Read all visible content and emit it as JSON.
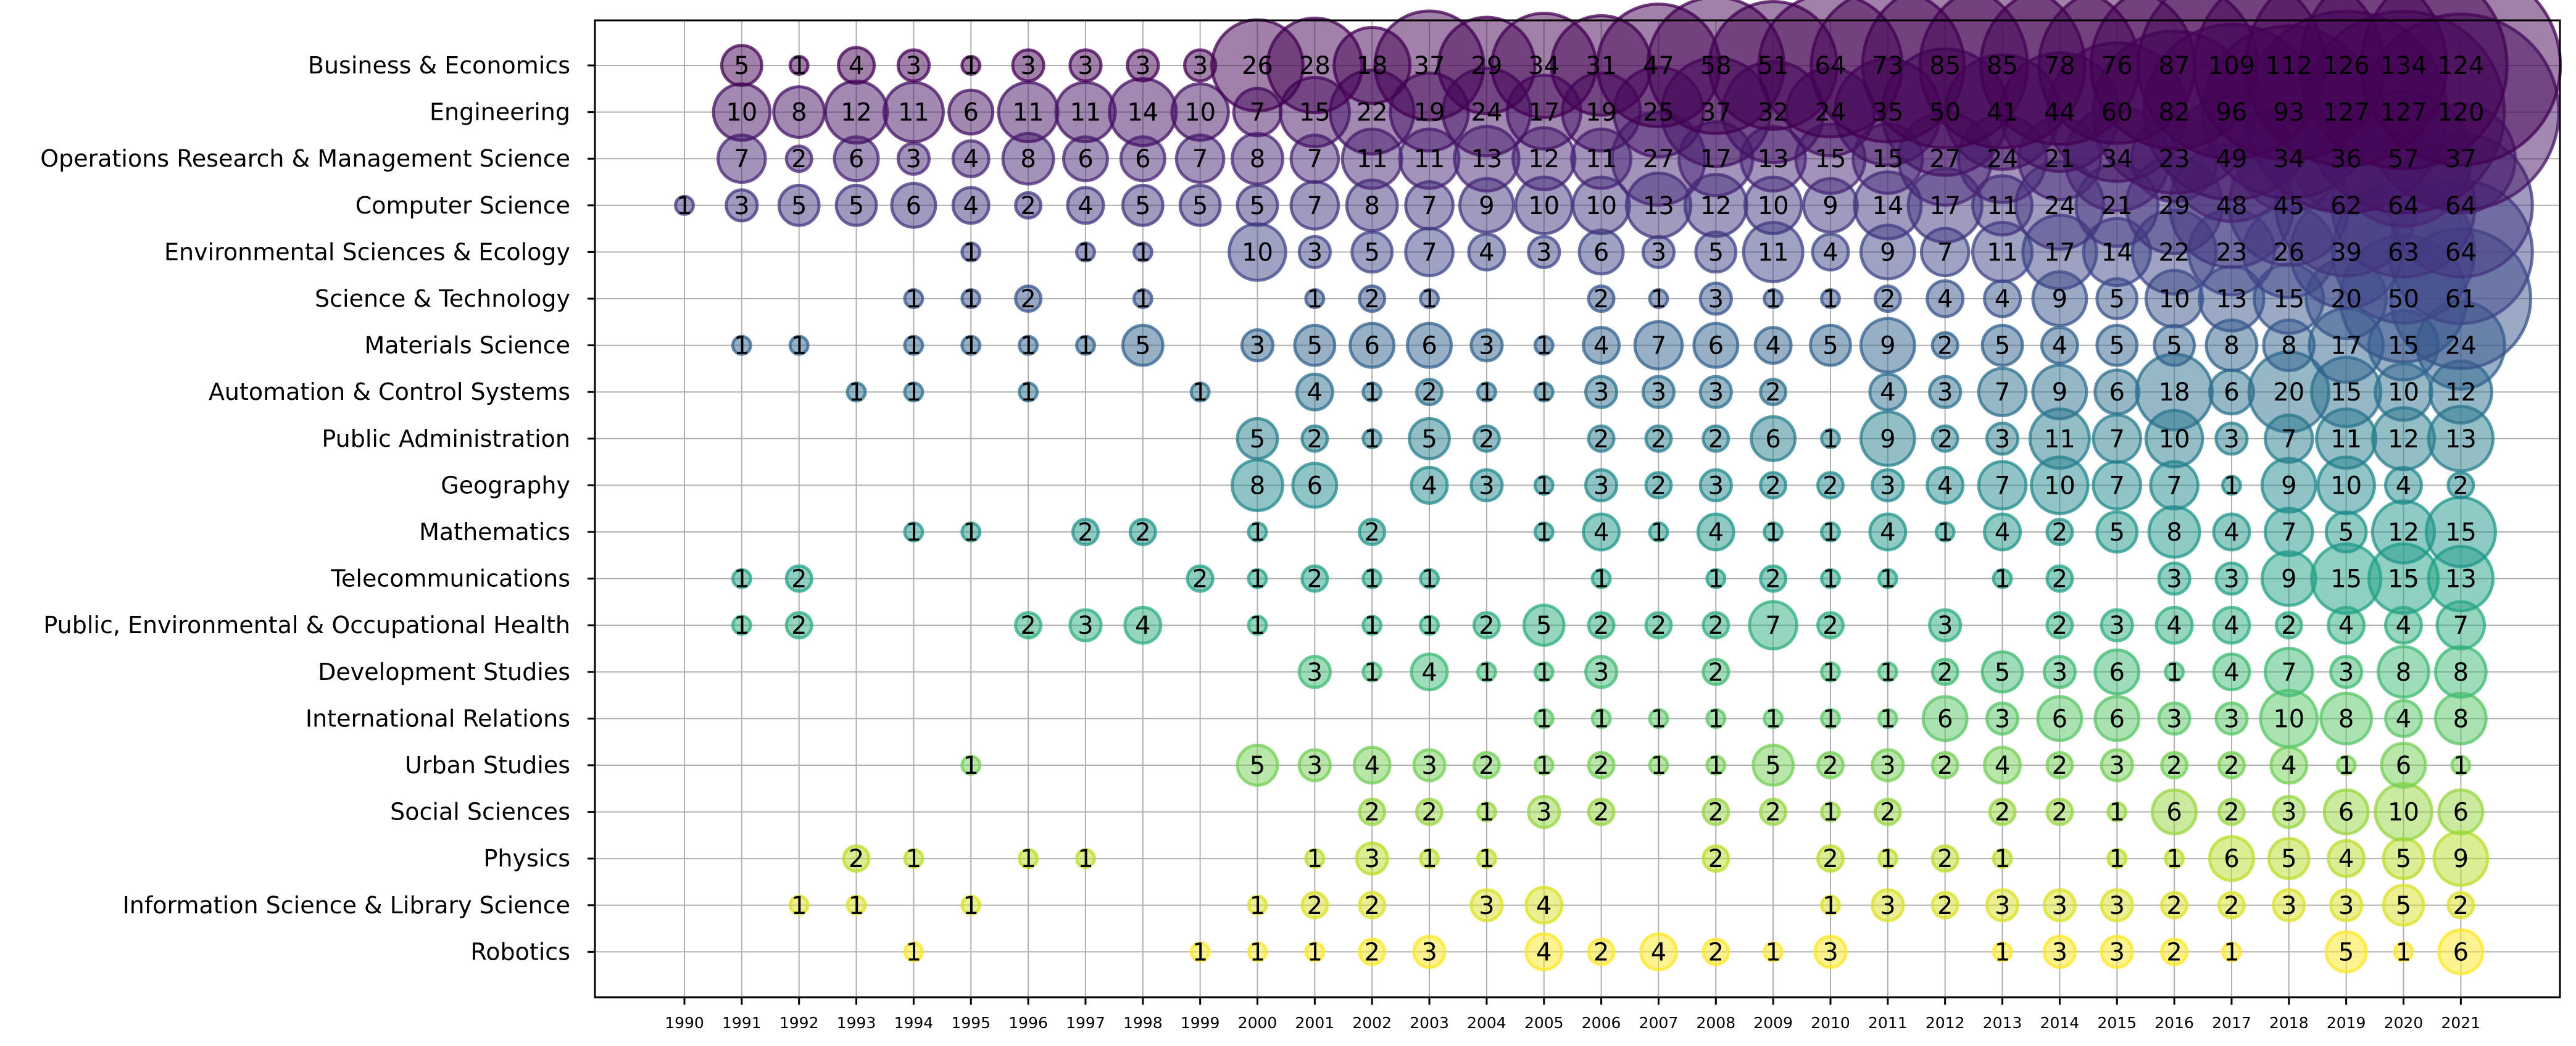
{
  "chart_data": {
    "type": "scatter",
    "subtype": "bubble",
    "title": "",
    "xlabel": "",
    "ylabel": "",
    "grid": true,
    "colormap": "viridis",
    "x": [
      1990,
      1991,
      1992,
      1993,
      1994,
      1995,
      1996,
      1997,
      1998,
      1999,
      2000,
      2001,
      2002,
      2003,
      2004,
      2005,
      2006,
      2007,
      2008,
      2009,
      2010,
      2011,
      2012,
      2013,
      2014,
      2015,
      2016,
      2017,
      2018,
      2019,
      2020,
      2021
    ],
    "categories": [
      "Business & Economics",
      "Engineering",
      "Operations Research & Management Science",
      "Computer Science",
      "Environmental Sciences & Ecology",
      "Science & Technology",
      "Materials Science",
      "Automation & Control Systems",
      "Public Administration",
      "Geography",
      "Mathematics",
      "Telecommunications",
      "Public, Environmental & Occupational Health",
      "Development Studies",
      "International Relations",
      "Urban Studies",
      "Social Sciences",
      "Physics",
      "Information Science & Library Science",
      "Robotics"
    ],
    "series": [
      {
        "name": "Business & Economics",
        "values": [
          null,
          5,
          1,
          4,
          3,
          1,
          3,
          3,
          3,
          3,
          26,
          28,
          18,
          37,
          29,
          34,
          31,
          47,
          58,
          51,
          64,
          73,
          85,
          85,
          78,
          76,
          87,
          109,
          112,
          126,
          134,
          124
        ]
      },
      {
        "name": "Engineering",
        "values": [
          null,
          10,
          8,
          12,
          11,
          6,
          11,
          11,
          14,
          10,
          7,
          15,
          22,
          19,
          24,
          17,
          19,
          25,
          37,
          32,
          24,
          35,
          50,
          41,
          44,
          60,
          82,
          96,
          93,
          127,
          127,
          120
        ]
      },
      {
        "name": "Operations Research & Management Science",
        "values": [
          null,
          7,
          2,
          6,
          3,
          4,
          8,
          6,
          6,
          7,
          8,
          7,
          11,
          11,
          13,
          12,
          11,
          27,
          17,
          13,
          15,
          15,
          27,
          24,
          21,
          34,
          23,
          49,
          34,
          36,
          57,
          37
        ]
      },
      {
        "name": "Computer Science",
        "values": [
          1,
          3,
          5,
          5,
          6,
          4,
          2,
          4,
          5,
          5,
          5,
          7,
          8,
          7,
          9,
          10,
          10,
          13,
          12,
          10,
          9,
          14,
          17,
          11,
          24,
          21,
          29,
          48,
          45,
          62,
          64,
          64
        ]
      },
      {
        "name": "Environmental Sciences & Ecology",
        "values": [
          null,
          null,
          null,
          null,
          null,
          1,
          null,
          1,
          1,
          null,
          10,
          3,
          5,
          7,
          4,
          3,
          6,
          3,
          5,
          11,
          4,
          9,
          7,
          11,
          17,
          14,
          22,
          23,
          26,
          39,
          63,
          64
        ]
      },
      {
        "name": "Science & Technology",
        "values": [
          null,
          null,
          null,
          null,
          1,
          1,
          2,
          null,
          1,
          null,
          null,
          1,
          2,
          1,
          null,
          null,
          2,
          1,
          3,
          1,
          1,
          2,
          4,
          4,
          9,
          5,
          10,
          13,
          15,
          20,
          50,
          61
        ]
      },
      {
        "name": "Materials Science",
        "values": [
          null,
          1,
          1,
          null,
          1,
          1,
          1,
          1,
          5,
          null,
          3,
          5,
          6,
          6,
          3,
          1,
          4,
          7,
          6,
          4,
          5,
          9,
          2,
          5,
          4,
          5,
          5,
          8,
          8,
          17,
          15,
          24
        ]
      },
      {
        "name": "Automation & Control Systems",
        "values": [
          null,
          null,
          null,
          1,
          1,
          null,
          1,
          null,
          null,
          1,
          null,
          4,
          1,
          2,
          1,
          1,
          3,
          3,
          3,
          2,
          null,
          4,
          3,
          7,
          9,
          6,
          18,
          6,
          20,
          15,
          10,
          12
        ]
      },
      {
        "name": "Public Administration",
        "values": [
          null,
          null,
          null,
          null,
          null,
          null,
          null,
          null,
          null,
          null,
          5,
          2,
          1,
          5,
          2,
          null,
          2,
          2,
          2,
          6,
          1,
          9,
          2,
          3,
          11,
          7,
          10,
          3,
          7,
          11,
          12,
          13
        ]
      },
      {
        "name": "Geography",
        "values": [
          null,
          null,
          null,
          null,
          null,
          null,
          null,
          null,
          null,
          null,
          8,
          6,
          null,
          4,
          3,
          1,
          3,
          2,
          3,
          2,
          2,
          3,
          4,
          7,
          10,
          7,
          7,
          1,
          9,
          10,
          4,
          2
        ]
      },
      {
        "name": "Mathematics",
        "values": [
          null,
          null,
          null,
          null,
          1,
          1,
          null,
          2,
          2,
          null,
          1,
          null,
          2,
          null,
          null,
          1,
          4,
          1,
          4,
          1,
          1,
          4,
          1,
          4,
          2,
          5,
          8,
          4,
          7,
          5,
          12,
          15
        ]
      },
      {
        "name": "Telecommunications",
        "values": [
          null,
          1,
          2,
          null,
          null,
          null,
          null,
          null,
          null,
          2,
          1,
          2,
          1,
          1,
          null,
          null,
          1,
          null,
          1,
          2,
          1,
          1,
          null,
          1,
          2,
          null,
          3,
          3,
          9,
          15,
          15,
          13
        ]
      },
      {
        "name": "Public, Environmental & Occupational Health",
        "values": [
          null,
          1,
          2,
          null,
          null,
          null,
          2,
          3,
          4,
          null,
          1,
          null,
          1,
          1,
          2,
          5,
          2,
          2,
          2,
          7,
          2,
          null,
          3,
          null,
          2,
          3,
          4,
          4,
          2,
          4,
          4,
          7
        ]
      },
      {
        "name": "Development Studies",
        "values": [
          null,
          null,
          null,
          null,
          null,
          null,
          null,
          null,
          null,
          null,
          null,
          3,
          1,
          4,
          1,
          1,
          3,
          null,
          2,
          null,
          1,
          1,
          2,
          5,
          3,
          6,
          1,
          4,
          7,
          3,
          8,
          8
        ]
      },
      {
        "name": "International Relations",
        "values": [
          null,
          null,
          null,
          null,
          null,
          null,
          null,
          null,
          null,
          null,
          null,
          null,
          null,
          null,
          null,
          1,
          1,
          1,
          1,
          1,
          1,
          1,
          6,
          3,
          6,
          6,
          3,
          3,
          10,
          8,
          4,
          8
        ]
      },
      {
        "name": "Urban Studies",
        "values": [
          null,
          null,
          null,
          null,
          null,
          1,
          null,
          null,
          null,
          null,
          5,
          3,
          4,
          3,
          2,
          1,
          2,
          1,
          1,
          5,
          2,
          3,
          2,
          4,
          2,
          3,
          2,
          2,
          4,
          1,
          6,
          1
        ]
      },
      {
        "name": "Social Sciences",
        "values": [
          null,
          null,
          null,
          null,
          null,
          null,
          null,
          null,
          null,
          null,
          null,
          null,
          2,
          2,
          1,
          3,
          2,
          null,
          2,
          2,
          1,
          2,
          null,
          2,
          2,
          1,
          6,
          2,
          3,
          6,
          10,
          6
        ]
      },
      {
        "name": "Physics",
        "values": [
          null,
          null,
          null,
          2,
          1,
          null,
          1,
          1,
          null,
          null,
          null,
          1,
          3,
          1,
          1,
          null,
          null,
          null,
          2,
          null,
          2,
          1,
          2,
          1,
          null,
          1,
          1,
          6,
          5,
          4,
          5,
          9
        ]
      },
      {
        "name": "Information Science & Library Science",
        "values": [
          null,
          null,
          1,
          1,
          null,
          1,
          null,
          null,
          null,
          null,
          1,
          2,
          2,
          null,
          3,
          4,
          null,
          null,
          null,
          null,
          1,
          3,
          2,
          3,
          3,
          3,
          2,
          2,
          3,
          3,
          5,
          2
        ]
      },
      {
        "name": "Robotics",
        "values": [
          null,
          null,
          null,
          null,
          1,
          null,
          null,
          null,
          null,
          1,
          1,
          1,
          2,
          3,
          null,
          4,
          2,
          4,
          2,
          1,
          3,
          null,
          null,
          1,
          3,
          3,
          2,
          1,
          null,
          5,
          1,
          6
        ]
      }
    ]
  }
}
